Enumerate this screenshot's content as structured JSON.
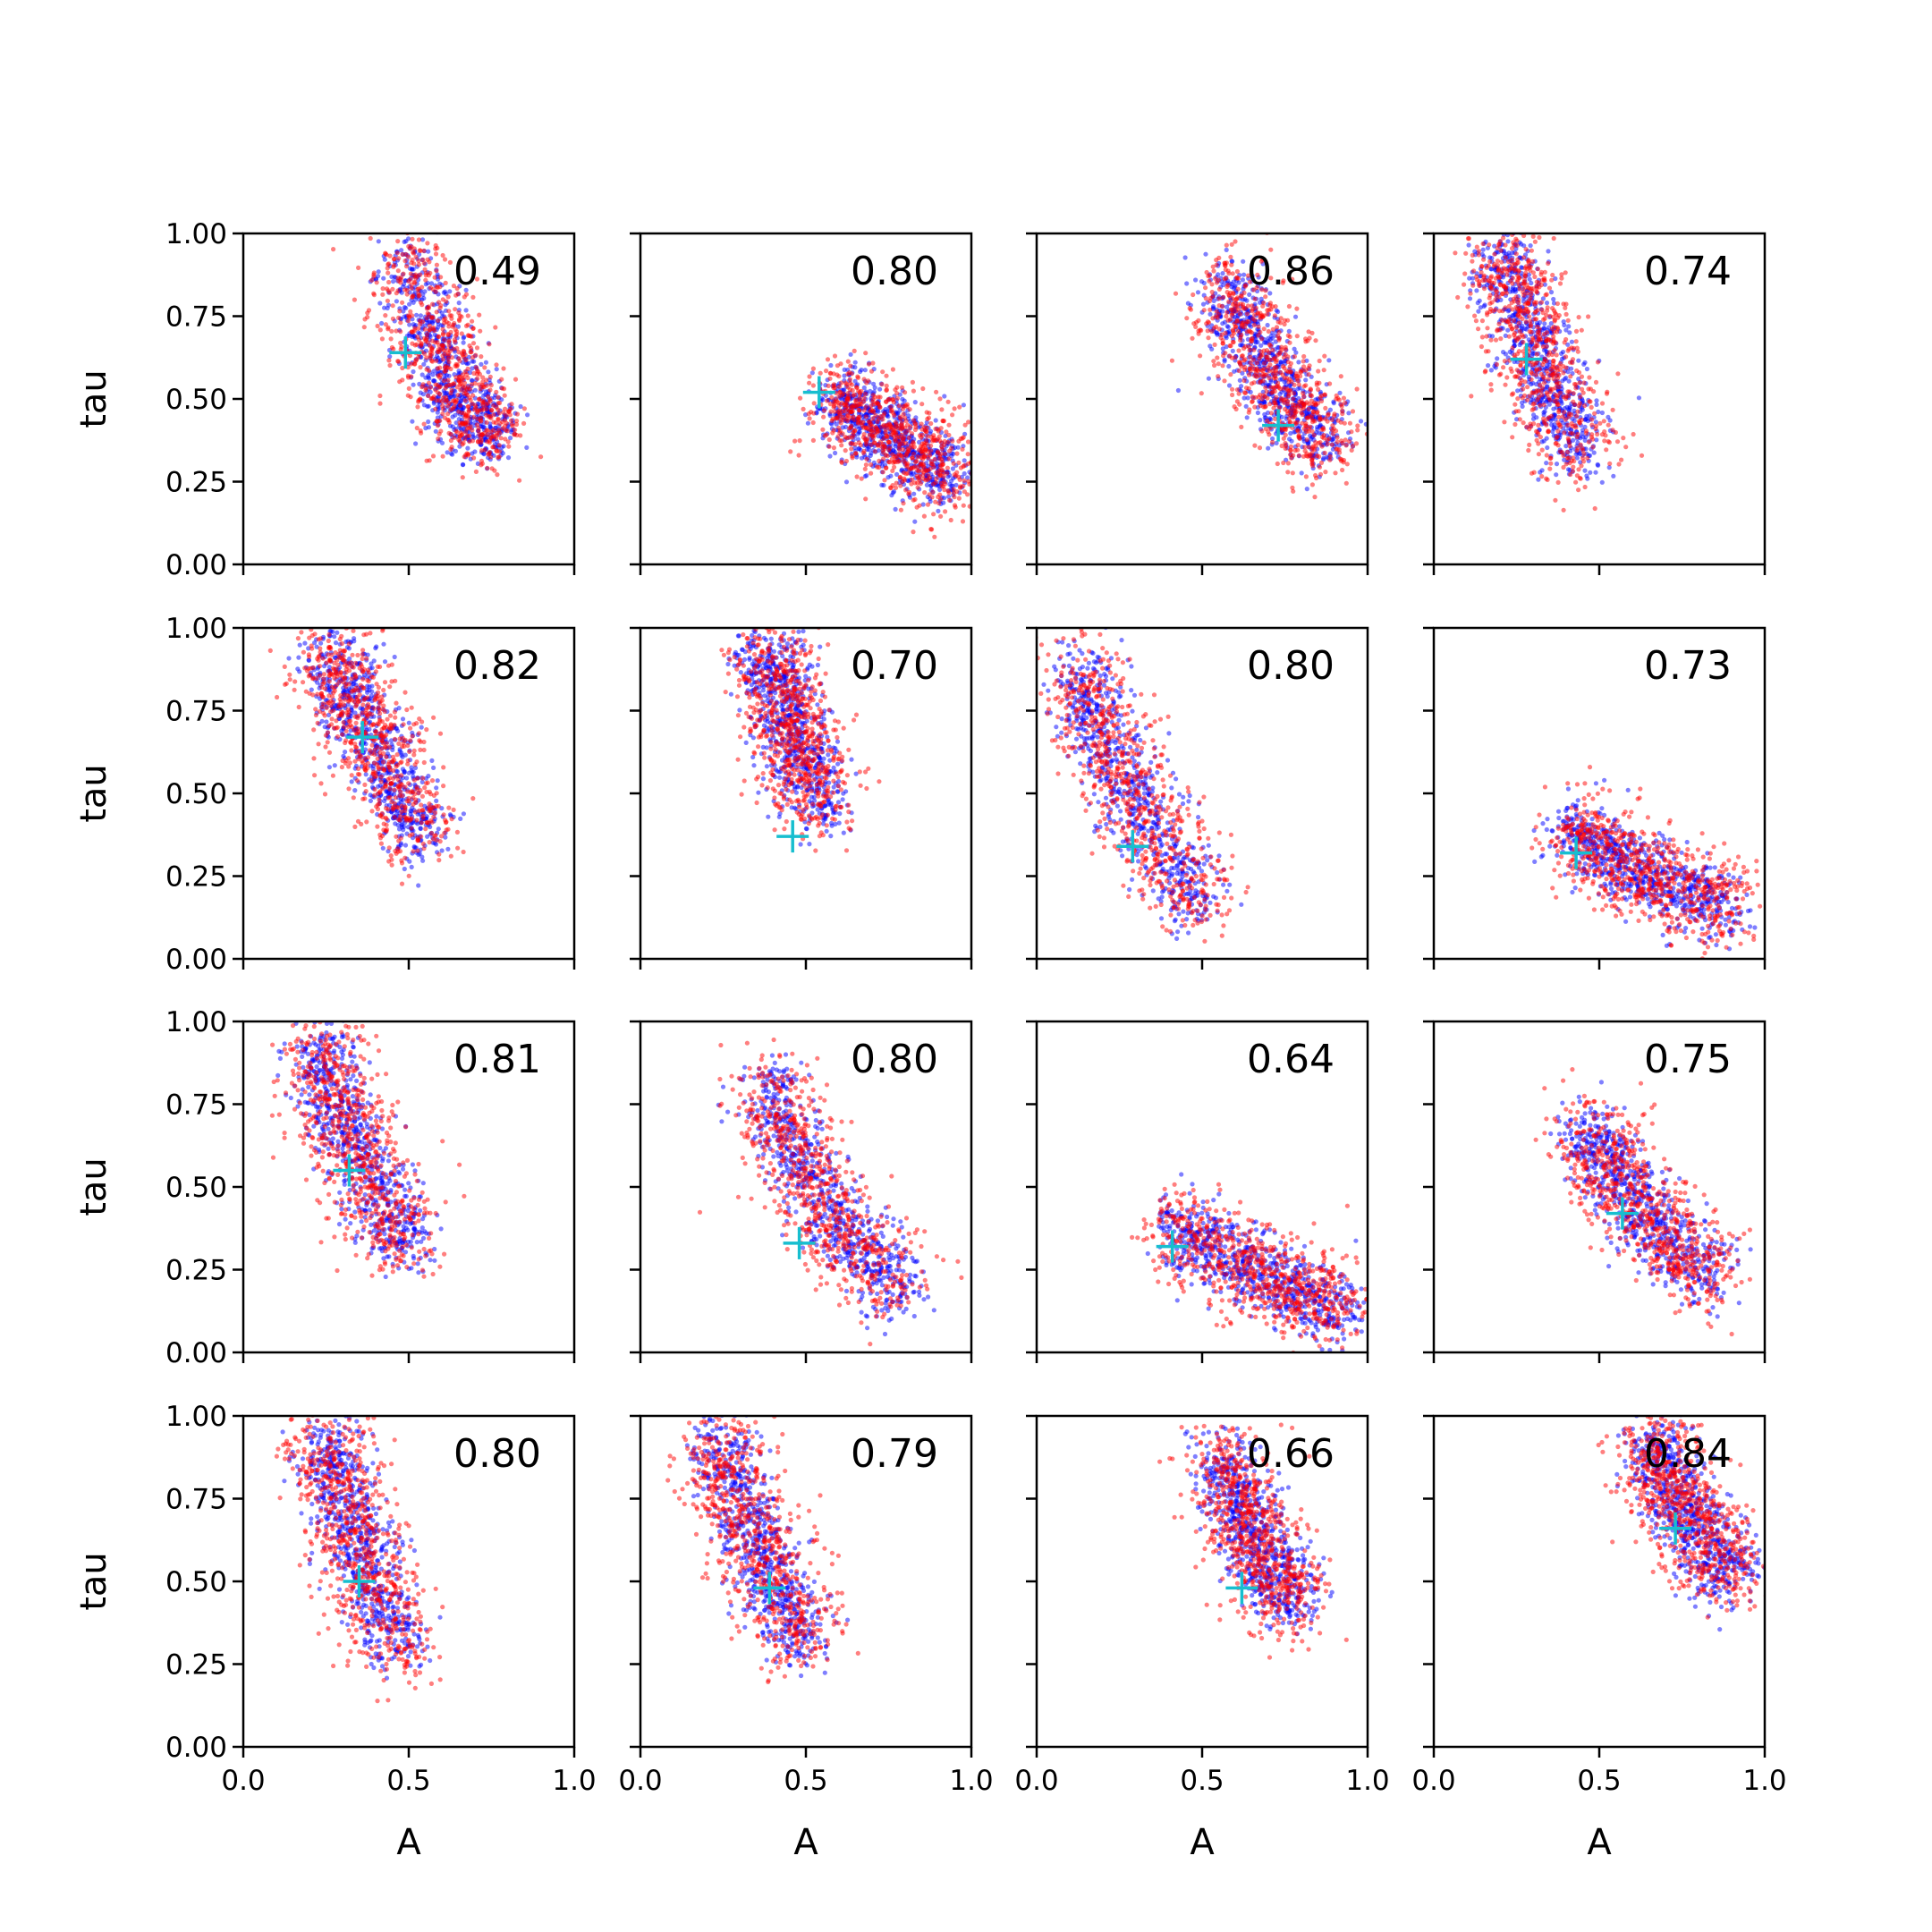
{
  "chart_data": {
    "type": "scatter",
    "layout": "4x4 grid of scatter panels, shared axes",
    "xlabel": "A",
    "ylabel": "tau",
    "xlim": [
      0,
      1
    ],
    "ylim": [
      0,
      1
    ],
    "x_ticks": [
      "0.0",
      "0.5",
      "1.0"
    ],
    "y_ticks": [
      "0.00",
      "0.25",
      "0.50",
      "0.75",
      "1.00"
    ],
    "grid": false,
    "series_colors": {
      "samples_a": "#0000ff",
      "samples_b": "#ff0000",
      "marker": "#17becf"
    },
    "panels": [
      {
        "score": "0.49",
        "marker": [
          0.49,
          0.64
        ],
        "cluster": [
          [
            0.48,
            0.95
          ],
          [
            0.62,
            0.48
          ],
          [
            0.75,
            0.38
          ]
        ]
      },
      {
        "score": "0.80",
        "marker": [
          0.54,
          0.52
        ],
        "cluster": [
          [
            0.58,
            0.52
          ],
          [
            0.75,
            0.38
          ],
          [
            0.95,
            0.25
          ]
        ]
      },
      {
        "score": "0.86",
        "marker": [
          0.73,
          0.42
        ],
        "cluster": [
          [
            0.56,
            0.88
          ],
          [
            0.7,
            0.5
          ],
          [
            0.9,
            0.35
          ]
        ]
      },
      {
        "score": "0.74",
        "marker": [
          0.28,
          0.62
        ],
        "cluster": [
          [
            0.2,
            0.95
          ],
          [
            0.3,
            0.65
          ],
          [
            0.45,
            0.3
          ]
        ]
      },
      {
        "score": "0.82",
        "marker": [
          0.36,
          0.67
        ],
        "cluster": [
          [
            0.25,
            0.95
          ],
          [
            0.38,
            0.65
          ],
          [
            0.55,
            0.35
          ]
        ]
      },
      {
        "score": "0.70",
        "marker": [
          0.46,
          0.37
        ],
        "cluster": [
          [
            0.38,
            0.95
          ],
          [
            0.45,
            0.7
          ],
          [
            0.55,
            0.45
          ]
        ]
      },
      {
        "score": "0.80",
        "marker": [
          0.29,
          0.34
        ],
        "cluster": [
          [
            0.12,
            0.9
          ],
          [
            0.25,
            0.5
          ],
          [
            0.5,
            0.15
          ]
        ]
      },
      {
        "score": "0.73",
        "marker": [
          0.43,
          0.32
        ],
        "cluster": [
          [
            0.4,
            0.4
          ],
          [
            0.6,
            0.25
          ],
          [
            0.9,
            0.15
          ]
        ]
      },
      {
        "score": "0.81",
        "marker": [
          0.32,
          0.55
        ],
        "cluster": [
          [
            0.22,
            0.95
          ],
          [
            0.32,
            0.6
          ],
          [
            0.5,
            0.3
          ]
        ]
      },
      {
        "score": "0.80",
        "marker": [
          0.48,
          0.33
        ],
        "cluster": [
          [
            0.38,
            0.85
          ],
          [
            0.5,
            0.4
          ],
          [
            0.8,
            0.18
          ]
        ]
      },
      {
        "score": "0.64",
        "marker": [
          0.41,
          0.32
        ],
        "cluster": [
          [
            0.4,
            0.4
          ],
          [
            0.65,
            0.22
          ],
          [
            0.95,
            0.12
          ]
        ]
      },
      {
        "score": "0.75",
        "marker": [
          0.57,
          0.42
        ],
        "cluster": [
          [
            0.45,
            0.7
          ],
          [
            0.6,
            0.4
          ],
          [
            0.85,
            0.22
          ]
        ]
      },
      {
        "score": "0.80",
        "marker": [
          0.35,
          0.5
        ],
        "cluster": [
          [
            0.25,
            0.95
          ],
          [
            0.33,
            0.6
          ],
          [
            0.48,
            0.28
          ]
        ]
      },
      {
        "score": "0.79",
        "marker": [
          0.39,
          0.48
        ],
        "cluster": [
          [
            0.22,
            0.95
          ],
          [
            0.35,
            0.6
          ],
          [
            0.5,
            0.3
          ]
        ]
      },
      {
        "score": "0.66",
        "marker": [
          0.62,
          0.48
        ],
        "cluster": [
          [
            0.55,
            0.9
          ],
          [
            0.65,
            0.6
          ],
          [
            0.78,
            0.42
          ]
        ]
      },
      {
        "score": "0.84",
        "marker": [
          0.73,
          0.66
        ],
        "cluster": [
          [
            0.65,
            0.95
          ],
          [
            0.75,
            0.7
          ],
          [
            0.9,
            0.5
          ]
        ]
      }
    ]
  }
}
